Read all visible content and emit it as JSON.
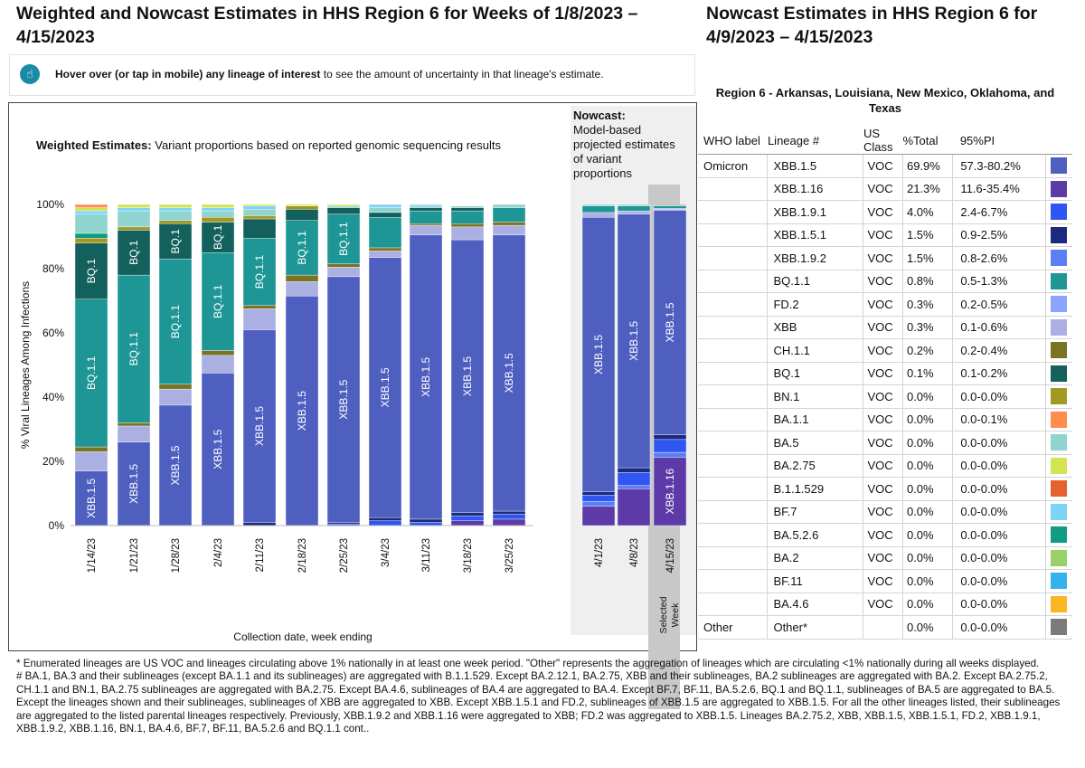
{
  "header": {
    "main_title": "Weighted and Nowcast Estimates in HHS Region 6 for Weeks of 1/8/2023 – 4/15/2023",
    "side_title": "Nowcast Estimates in HHS Region 6 for 4/9/2023 – 4/15/2023"
  },
  "hint": {
    "icon": "hand-pointer-icon",
    "bold": "Hover over (or tap in mobile) any lineage of interest",
    "text": " to see the amount of uncertainty in that lineage's estimate."
  },
  "chart_data": {
    "type": "bar",
    "stacked": true,
    "weighted_heading_bold": "Weighted Estimates:",
    "weighted_heading_text": " Variant proportions based on reported genomic sequencing results",
    "nowcast_heading_bold": "Nowcast:",
    "nowcast_heading_text": "Model-based projected estimates of variant proportions",
    "ylabel": "% Viral Lineages Among Infections",
    "xlabel": "Collection date, week ending",
    "ylim": [
      0,
      100
    ],
    "yticks": [
      "0%",
      "20%",
      "40%",
      "60%",
      "80%",
      "100%"
    ],
    "selected_week_label": "Selected Week",
    "lineage_colors": {
      "XBB.1.5": "#4f5fc0",
      "XBB.1.16": "#5c3aa8",
      "XBB.1.9.1": "#2f55f2",
      "XBB.1.5.1": "#1b2a7e",
      "XBB.1.9.2": "#5a7ff5",
      "BQ.1.1": "#1e9696",
      "FD.2": "#8aa4ff",
      "XBB": "#aab0e2",
      "CH.1.1": "#7a7323",
      "BQ.1": "#13605c",
      "BN.1": "#a19a22",
      "BA.1.1": "#ff8d50",
      "BA.5": "#8fd4cf",
      "BA.2.75": "#d4e354",
      "B.1.1.529": "#e5622e",
      "BF.7": "#7ed4f7",
      "BA.5.2.6": "#0e9c86",
      "BA.2": "#98d16a",
      "BF.11": "#35b2ec",
      "BA.4.6": "#fbb422",
      "Other": "#7b7b7b"
    },
    "weighted_categories": [
      "1/14/23",
      "1/21/23",
      "1/28/23",
      "2/4/23",
      "2/11/23",
      "2/18/23",
      "2/25/23",
      "3/4/23",
      "3/11/23",
      "3/18/23",
      "3/25/23"
    ],
    "nowcast_categories": [
      "4/1/23",
      "4/8/23",
      "4/15/23"
    ],
    "weighted_stacks": [
      [
        [
          "XBB.1.5",
          17
        ],
        [
          "XBB",
          6
        ],
        [
          "CH.1.1",
          1.5
        ],
        [
          "BQ.1.1",
          46
        ],
        [
          "BQ.1",
          17.5
        ],
        [
          "BN.1",
          1.5
        ],
        [
          "BA.5.2.6",
          1.5
        ],
        [
          "BA.5",
          6
        ],
        [
          "BF.7",
          1
        ],
        [
          "BA.2.75",
          1
        ],
        [
          "BA.1.1",
          1
        ]
      ],
      [
        [
          "XBB.1.5",
          26
        ],
        [
          "XBB",
          5
        ],
        [
          "CH.1.1",
          1
        ],
        [
          "BQ.1.1",
          46
        ],
        [
          "BQ.1",
          14
        ],
        [
          "BN.1",
          1
        ],
        [
          "BA.5",
          5
        ],
        [
          "BF.7",
          1
        ],
        [
          "BA.2.75",
          1
        ]
      ],
      [
        [
          "XBB.1.5",
          37.5
        ],
        [
          "XBB",
          5
        ],
        [
          "CH.1.1",
          1.5
        ],
        [
          "BQ.1.1",
          39
        ],
        [
          "BQ.1",
          11
        ],
        [
          "BN.1",
          1
        ],
        [
          "BA.5",
          3
        ],
        [
          "BF.7",
          1
        ],
        [
          "BA.2.75",
          1
        ]
      ],
      [
        [
          "XBB.1.5",
          47.5
        ],
        [
          "XBB",
          5.5
        ],
        [
          "CH.1.1",
          1.5
        ],
        [
          "BQ.1.1",
          30.5
        ],
        [
          "BQ.1",
          9.5
        ],
        [
          "BN.1",
          1.5
        ],
        [
          "BA.5",
          2
        ],
        [
          "BF.7",
          1
        ],
        [
          "BA.2.75",
          1
        ]
      ],
      [
        [
          "XBB.1.5.1",
          1
        ],
        [
          "XBB.1.5",
          60
        ],
        [
          "XBB",
          6.5
        ],
        [
          "CH.1.1",
          1
        ],
        [
          "BQ.1.1",
          21
        ],
        [
          "BQ.1",
          6
        ],
        [
          "BN.1",
          1
        ],
        [
          "BA.5",
          2
        ],
        [
          "BF.7",
          1
        ],
        [
          "BA.2.75",
          0.5
        ]
      ],
      [
        [
          "XBB.1.5",
          71.5
        ],
        [
          "XBB",
          4.5
        ],
        [
          "CH.1.1",
          2
        ],
        [
          "BQ.1.1",
          17
        ],
        [
          "BQ.1",
          3.5
        ],
        [
          "BN.1",
          1
        ],
        [
          "BA.2.75",
          0.5
        ]
      ],
      [
        [
          "XBB.1.9.1",
          0.5
        ],
        [
          "XBB.1.5.1",
          0.5
        ],
        [
          "XBB.1.5",
          76.5
        ],
        [
          "XBB",
          3
        ],
        [
          "CH.1.1",
          1
        ],
        [
          "BQ.1.1",
          15.5
        ],
        [
          "BQ.1",
          2
        ],
        [
          "BA.5",
          0.5
        ],
        [
          "BA.2.75",
          0.5
        ]
      ],
      [
        [
          "XBB.1.9.1",
          1.5
        ],
        [
          "XBB.1.5.1",
          1
        ],
        [
          "XBB.1.5",
          81
        ],
        [
          "XBB",
          2
        ],
        [
          "CH.1.1",
          1
        ],
        [
          "BQ.1.1",
          9.5
        ],
        [
          "BQ.1",
          1.5
        ],
        [
          "BA.5",
          1.5
        ],
        [
          "BF.7",
          1
        ]
      ],
      [
        [
          "XBB.1.9.1",
          1
        ],
        [
          "XBB.1.5.1",
          1
        ],
        [
          "XBB.1.5",
          88.5
        ],
        [
          "XBB",
          3
        ],
        [
          "CH.1.1",
          0.5
        ],
        [
          "BQ.1.1",
          4
        ],
        [
          "BQ.1",
          1
        ],
        [
          "BA.5",
          0.5
        ],
        [
          "BF.7",
          0.5
        ]
      ],
      [
        [
          "XBB.1.16",
          1.5
        ],
        [
          "XBB.1.9.1",
          1.5
        ],
        [
          "XBB.1.5.1",
          1
        ],
        [
          "XBB.1.5",
          85
        ],
        [
          "XBB",
          4
        ],
        [
          "CH.1.1",
          1
        ],
        [
          "BQ.1.1",
          4
        ],
        [
          "BQ.1",
          1
        ],
        [
          "BA.5",
          0.5
        ]
      ],
      [
        [
          "XBB.1.16",
          2
        ],
        [
          "XBB.1.9.1",
          1.5
        ],
        [
          "XBB.1.5.1",
          1
        ],
        [
          "XBB.1.5",
          86
        ],
        [
          "XBB",
          3
        ],
        [
          "CH.1.1",
          1
        ],
        [
          "BQ.1.1",
          4.5
        ],
        [
          "BA.5",
          1
        ]
      ]
    ],
    "nowcast_stacks": [
      [
        [
          "XBB.1.16",
          6
        ],
        [
          "XBB.1.9.2",
          1.5
        ],
        [
          "XBB.1.9.1",
          2
        ],
        [
          "XBB.1.5.1",
          1
        ],
        [
          "XBB.1.5",
          85.5
        ],
        [
          "XBB",
          1.5
        ],
        [
          "BQ.1.1",
          2
        ],
        [
          "BA.5",
          0.5
        ]
      ],
      [
        [
          "XBB.1.16",
          11.5
        ],
        [
          "XBB.1.9.2",
          1
        ],
        [
          "XBB.1.9.1",
          4
        ],
        [
          "XBB.1.5.1",
          1.5
        ],
        [
          "XBB.1.5",
          79
        ],
        [
          "XBB",
          1
        ],
        [
          "BQ.1.1",
          1.5
        ],
        [
          "BA.5",
          0.5
        ]
      ],
      [
        [
          "XBB.1.16",
          21.3
        ],
        [
          "XBB.1.9.2",
          1.5
        ],
        [
          "XBB.1.9.1",
          4
        ],
        [
          "XBB.1.5.1",
          1.5
        ],
        [
          "XBB.1.5",
          69.9
        ],
        [
          "XBB",
          0.3
        ],
        [
          "FD.2",
          0.3
        ],
        [
          "BQ.1.1",
          0.8
        ],
        [
          "BQ.1",
          0.1
        ],
        [
          "CH.1.1",
          0.2
        ]
      ]
    ],
    "bar_labels": [
      {
        "bar": 0,
        "text": "XBB.1.5",
        "lineage": "XBB.1.5"
      },
      {
        "bar": 0,
        "text": "BQ.1.1",
        "lineage": "BQ.1.1"
      },
      {
        "bar": 0,
        "text": "BQ.1",
        "lineage": "BQ.1"
      },
      {
        "bar": 1,
        "text": "XBB.1.5",
        "lineage": "XBB.1.5"
      },
      {
        "bar": 1,
        "text": "BQ.1.1",
        "lineage": "BQ.1.1"
      },
      {
        "bar": 1,
        "text": "BQ.1",
        "lineage": "BQ.1"
      },
      {
        "bar": 2,
        "text": "XBB.1.5",
        "lineage": "XBB.1.5"
      },
      {
        "bar": 2,
        "text": "BQ.1.1",
        "lineage": "BQ.1.1"
      },
      {
        "bar": 2,
        "text": "BQ.1",
        "lineage": "BQ.1"
      },
      {
        "bar": 3,
        "text": "XBB.1.5",
        "lineage": "XBB.1.5"
      },
      {
        "bar": 3,
        "text": "BQ.1.1",
        "lineage": "BQ.1.1"
      },
      {
        "bar": 3,
        "text": "BQ.1",
        "lineage": "BQ.1"
      },
      {
        "bar": 4,
        "text": "XBB.1.5",
        "lineage": "XBB.1.5"
      },
      {
        "bar": 4,
        "text": "BQ.1.1",
        "lineage": "BQ.1.1"
      },
      {
        "bar": 5,
        "text": "XBB.1.5",
        "lineage": "XBB.1.5"
      },
      {
        "bar": 5,
        "text": "BQ.1.1",
        "lineage": "BQ.1.1"
      },
      {
        "bar": 6,
        "text": "XBB.1.5",
        "lineage": "XBB.1.5"
      },
      {
        "bar": 6,
        "text": "BQ.1.1",
        "lineage": "BQ.1.1"
      },
      {
        "bar": 7,
        "text": "XBB.1.5",
        "lineage": "XBB.1.5"
      },
      {
        "bar": 8,
        "text": "XBB.1.5",
        "lineage": "XBB.1.5"
      },
      {
        "bar": 9,
        "text": "XBB.1.5",
        "lineage": "XBB.1.5"
      },
      {
        "bar": 10,
        "text": "XBB.1.5",
        "lineage": "XBB.1.5"
      },
      {
        "bar": 11,
        "text": "XBB.1.5",
        "lineage": "XBB.1.5"
      },
      {
        "bar": 12,
        "text": "XBB.1.5",
        "lineage": "XBB.1.5"
      },
      {
        "bar": 13,
        "text": "XBB.1.5",
        "lineage": "XBB.1.5"
      },
      {
        "bar": 13,
        "text": "XBB.1.16",
        "lineage": "XBB.1.16"
      }
    ]
  },
  "table": {
    "subtitle": "Region 6 - Arkansas, Louisiana, New Mexico, Oklahoma, and Texas",
    "headers": {
      "who": "WHO label",
      "lineage": "Lineage #",
      "class": "US Class",
      "total": "%Total",
      "pi": "95%PI"
    },
    "rows": [
      {
        "who": "Omicron",
        "lineage": "XBB.1.5",
        "class": "VOC",
        "total": "69.9%",
        "pi": "57.3-80.2%",
        "color": "#4f5fc0"
      },
      {
        "who": "",
        "lineage": "XBB.1.16",
        "class": "VOC",
        "total": "21.3%",
        "pi": "11.6-35.4%",
        "color": "#5c3aa8"
      },
      {
        "who": "",
        "lineage": "XBB.1.9.1",
        "class": "VOC",
        "total": "4.0%",
        "pi": "2.4-6.7%",
        "color": "#2f55f2"
      },
      {
        "who": "",
        "lineage": "XBB.1.5.1",
        "class": "VOC",
        "total": "1.5%",
        "pi": "0.9-2.5%",
        "color": "#1b2a7e"
      },
      {
        "who": "",
        "lineage": "XBB.1.9.2",
        "class": "VOC",
        "total": "1.5%",
        "pi": "0.8-2.6%",
        "color": "#5a7ff5"
      },
      {
        "who": "",
        "lineage": "BQ.1.1",
        "class": "VOC",
        "total": "0.8%",
        "pi": "0.5-1.3%",
        "color": "#1e9696"
      },
      {
        "who": "",
        "lineage": "FD.2",
        "class": "VOC",
        "total": "0.3%",
        "pi": "0.2-0.5%",
        "color": "#8aa4ff"
      },
      {
        "who": "",
        "lineage": "XBB",
        "class": "VOC",
        "total": "0.3%",
        "pi": "0.1-0.6%",
        "color": "#aab0e2"
      },
      {
        "who": "",
        "lineage": "CH.1.1",
        "class": "VOC",
        "total": "0.2%",
        "pi": "0.2-0.4%",
        "color": "#7a7323"
      },
      {
        "who": "",
        "lineage": "BQ.1",
        "class": "VOC",
        "total": "0.1%",
        "pi": "0.1-0.2%",
        "color": "#13605c"
      },
      {
        "who": "",
        "lineage": "BN.1",
        "class": "VOC",
        "total": "0.0%",
        "pi": "0.0-0.0%",
        "color": "#a19a22"
      },
      {
        "who": "",
        "lineage": "BA.1.1",
        "class": "VOC",
        "total": "0.0%",
        "pi": "0.0-0.1%",
        "color": "#ff8d50"
      },
      {
        "who": "",
        "lineage": "BA.5",
        "class": "VOC",
        "total": "0.0%",
        "pi": "0.0-0.0%",
        "color": "#8fd4cf"
      },
      {
        "who": "",
        "lineage": "BA.2.75",
        "class": "VOC",
        "total": "0.0%",
        "pi": "0.0-0.0%",
        "color": "#d4e354"
      },
      {
        "who": "",
        "lineage": "B.1.1.529",
        "class": "VOC",
        "total": "0.0%",
        "pi": "0.0-0.0%",
        "color": "#e5622e"
      },
      {
        "who": "",
        "lineage": "BF.7",
        "class": "VOC",
        "total": "0.0%",
        "pi": "0.0-0.0%",
        "color": "#7ed4f7"
      },
      {
        "who": "",
        "lineage": "BA.5.2.6",
        "class": "VOC",
        "total": "0.0%",
        "pi": "0.0-0.0%",
        "color": "#0e9c86"
      },
      {
        "who": "",
        "lineage": "BA.2",
        "class": "VOC",
        "total": "0.0%",
        "pi": "0.0-0.0%",
        "color": "#98d16a"
      },
      {
        "who": "",
        "lineage": "BF.11",
        "class": "VOC",
        "total": "0.0%",
        "pi": "0.0-0.0%",
        "color": "#35b2ec"
      },
      {
        "who": "",
        "lineage": "BA.4.6",
        "class": "VOC",
        "total": "0.0%",
        "pi": "0.0-0.0%",
        "color": "#fbb422"
      },
      {
        "who": "Other",
        "lineage": "Other*",
        "class": "",
        "total": "0.0%",
        "pi": "0.0-0.0%",
        "color": "#7b7b7b"
      }
    ]
  },
  "footnotes": {
    "star": "*      Enumerated lineages are US VOC and lineages circulating above 1% nationally in at least one week period. \"Other\" represents the aggregation of lineages which are circulating <1% nationally during all weeks displayed.",
    "hash": "#      BA.1, BA.3 and their sublineages (except BA.1.1 and its sublineages) are aggregated with B.1.1.529. Except BA.2.12.1, BA.2.75, XBB and their sublineages, BA.2 sublineages are aggregated with BA.2. Except BA.2.75.2, CH.1.1 and BN.1, BA.2.75 sublineages are aggregated with BA.2.75. Except BA.4.6, sublineages of BA.4 are aggregated to BA.4. Except BF.7, BF.11, BA.5.2.6, BQ.1 and BQ.1.1, sublineages of BA.5 are aggregated to BA.5. Except the lineages shown and their sublineages, sublineages of XBB are aggregated to XBB. Except XBB.1.5.1 and FD.2, sublineages of XBB.1.5 are aggregated to XBB.1.5. For all the other lineages listed, their sublineages are aggregated to the listed parental lineages respectively. Previously, XBB.1.9.2 and XBB.1.16 were aggregated to XBB; FD.2 was aggregated to XBB.1.5. Lineages BA.2.75.2, XBB, XBB.1.5, XBB.1.5.1, FD.2, XBB.1.9.1, XBB.1.9.2, XBB.1.16, BN.1, BA.4.6, BF.7, BF.11, BA.5.2.6 and BQ.1.1 cont.."
  }
}
